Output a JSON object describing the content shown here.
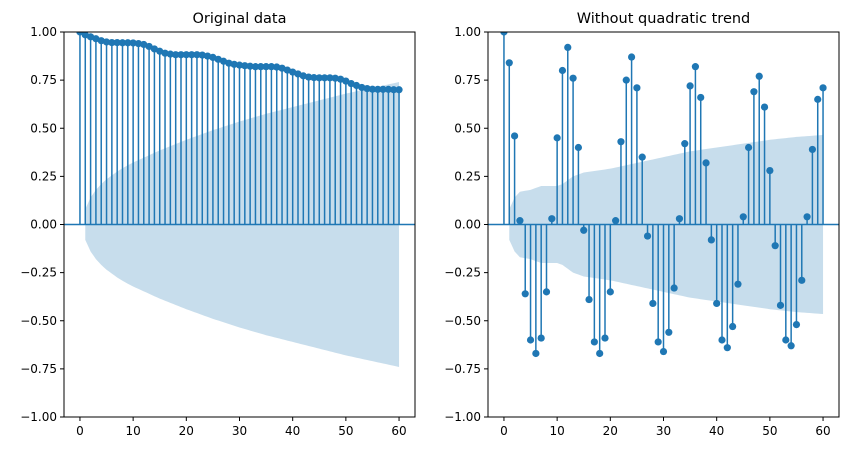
{
  "colors": {
    "stem": "#1f77b4",
    "band": "#1f77b4",
    "axes": "#000000",
    "background": "#ffffff"
  },
  "chart_data": [
    {
      "type": "stem",
      "title": "Original data",
      "xlabel": "",
      "ylabel": "",
      "xlim": [
        -3,
        63
      ],
      "ylim": [
        -1.0,
        1.0
      ],
      "xticks": [
        0,
        10,
        20,
        30,
        40,
        50,
        60
      ],
      "xtick_labels": [
        "0",
        "10",
        "20",
        "30",
        "40",
        "50",
        "60"
      ],
      "yticks": [
        -1.0,
        -0.75,
        -0.5,
        -0.25,
        0.0,
        0.25,
        0.5,
        0.75,
        1.0
      ],
      "ytick_labels": [
        "−1.00",
        "−0.75",
        "−0.50",
        "−0.25",
        "0.00",
        "0.25",
        "0.50",
        "0.75",
        "1.00"
      ],
      "grid": false,
      "lags": [
        0,
        1,
        2,
        3,
        4,
        5,
        6,
        7,
        8,
        9,
        10,
        11,
        12,
        13,
        14,
        15,
        16,
        17,
        18,
        19,
        20,
        21,
        22,
        23,
        24,
        25,
        26,
        27,
        28,
        29,
        30,
        31,
        32,
        33,
        34,
        35,
        36,
        37,
        38,
        39,
        40,
        41,
        42,
        43,
        44,
        45,
        46,
        47,
        48,
        49,
        50,
        51,
        52,
        53,
        54,
        55,
        56,
        57,
        58,
        59,
        60
      ],
      "values": [
        1.0,
        0.985,
        0.975,
        0.965,
        0.955,
        0.948,
        0.945,
        0.945,
        0.944,
        0.944,
        0.943,
        0.94,
        0.935,
        0.925,
        0.912,
        0.9,
        0.89,
        0.885,
        0.882,
        0.882,
        0.882,
        0.882,
        0.882,
        0.88,
        0.875,
        0.868,
        0.858,
        0.848,
        0.838,
        0.832,
        0.828,
        0.825,
        0.822,
        0.82,
        0.82,
        0.82,
        0.82,
        0.818,
        0.812,
        0.802,
        0.792,
        0.782,
        0.772,
        0.766,
        0.763,
        0.762,
        0.762,
        0.762,
        0.76,
        0.755,
        0.745,
        0.732,
        0.722,
        0.712,
        0.706,
        0.703,
        0.702,
        0.702,
        0.702,
        0.7,
        0.7
      ],
      "confidence_band": {
        "lags": [
          1,
          2,
          3,
          4,
          5,
          6,
          7,
          8,
          9,
          10,
          15,
          20,
          25,
          30,
          35,
          40,
          45,
          50,
          55,
          60
        ],
        "upper": [
          0.08,
          0.14,
          0.18,
          0.21,
          0.235,
          0.255,
          0.275,
          0.292,
          0.308,
          0.322,
          0.385,
          0.44,
          0.49,
          0.535,
          0.575,
          0.61,
          0.645,
          0.68,
          0.71,
          0.74
        ]
      }
    },
    {
      "type": "stem",
      "title": "Without quadratic trend",
      "xlabel": "",
      "ylabel": "",
      "xlim": [
        -3,
        63
      ],
      "ylim": [
        -1.0,
        1.0
      ],
      "xticks": [
        0,
        10,
        20,
        30,
        40,
        50,
        60
      ],
      "xtick_labels": [
        "0",
        "10",
        "20",
        "30",
        "40",
        "50",
        "60"
      ],
      "yticks": [
        -1.0,
        -0.75,
        -0.5,
        -0.25,
        0.0,
        0.25,
        0.5,
        0.75,
        1.0
      ],
      "ytick_labels": [
        "−1.00",
        "−0.75",
        "−0.50",
        "−0.25",
        "0.00",
        "0.25",
        "0.50",
        "0.75",
        "1.00"
      ],
      "grid": false,
      "lags": [
        0,
        1,
        2,
        3,
        4,
        5,
        6,
        7,
        8,
        9,
        10,
        11,
        12,
        13,
        14,
        15,
        16,
        17,
        18,
        19,
        20,
        21,
        22,
        23,
        24,
        25,
        26,
        27,
        28,
        29,
        30,
        31,
        32,
        33,
        34,
        35,
        36,
        37,
        38,
        39,
        40,
        41,
        42,
        43,
        44,
        45,
        46,
        47,
        48,
        49,
        50,
        51,
        52,
        53,
        54,
        55,
        56,
        57,
        58,
        59,
        60
      ],
      "values": [
        1.0,
        0.84,
        0.46,
        0.02,
        -0.36,
        -0.6,
        -0.67,
        -0.59,
        -0.35,
        0.03,
        0.45,
        0.8,
        0.92,
        0.76,
        0.4,
        -0.03,
        -0.39,
        -0.61,
        -0.67,
        -0.59,
        -0.35,
        0.02,
        0.43,
        0.75,
        0.87,
        0.71,
        0.35,
        -0.06,
        -0.41,
        -0.61,
        -0.66,
        -0.56,
        -0.33,
        0.03,
        0.42,
        0.72,
        0.82,
        0.66,
        0.32,
        -0.08,
        -0.41,
        -0.6,
        -0.64,
        -0.53,
        -0.31,
        0.04,
        0.4,
        0.69,
        0.77,
        0.61,
        0.28,
        -0.11,
        -0.42,
        -0.6,
        -0.63,
        -0.52,
        -0.29,
        0.04,
        0.39,
        0.65,
        0.71
      ],
      "confidence_band": {
        "lags": [
          1,
          2,
          3,
          4,
          5,
          6,
          7,
          8,
          9,
          10,
          11,
          12,
          13,
          14,
          15,
          20,
          25,
          30,
          35,
          40,
          45,
          50,
          55,
          60
        ],
        "upper": [
          0.08,
          0.14,
          0.17,
          0.175,
          0.18,
          0.19,
          0.2,
          0.2,
          0.2,
          0.2,
          0.21,
          0.23,
          0.25,
          0.26,
          0.27,
          0.29,
          0.32,
          0.35,
          0.38,
          0.4,
          0.42,
          0.44,
          0.455,
          0.465
        ]
      }
    }
  ]
}
